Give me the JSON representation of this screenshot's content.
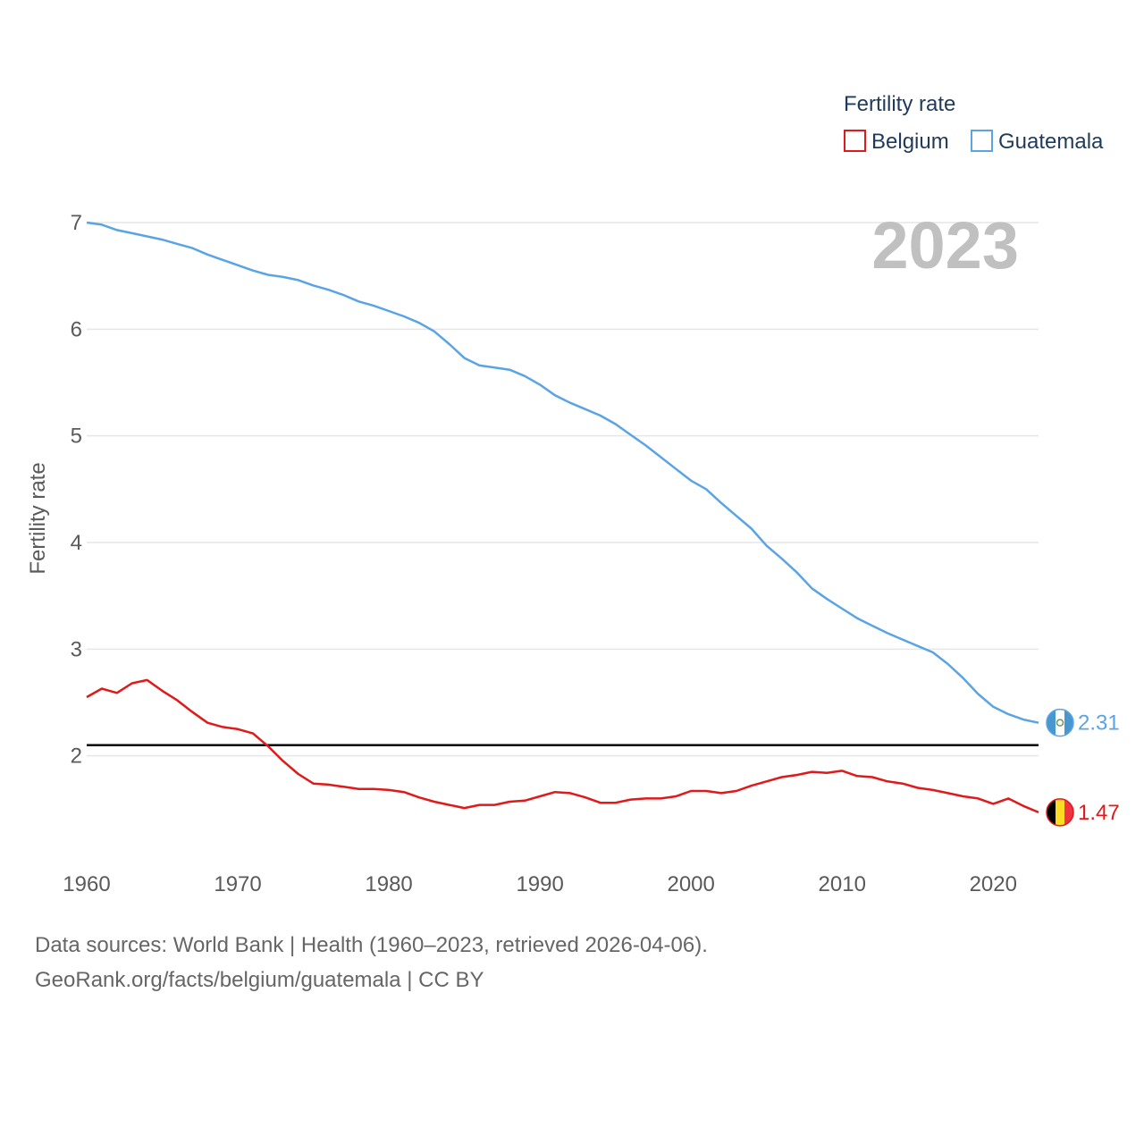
{
  "chart_data": {
    "type": "line",
    "legend_title": "Fertility rate",
    "ylabel": "Fertility rate",
    "xlabel": "",
    "year_label": "2023",
    "ylim": [
      1.0,
      7.0
    ],
    "xlim": [
      1960,
      2023
    ],
    "y_ticks": [
      2,
      3,
      4,
      5,
      6,
      7
    ],
    "x_ticks": [
      1960,
      1970,
      1980,
      1990,
      2000,
      2010,
      2020
    ],
    "reference_line": 2.1,
    "x": [
      1960,
      1961,
      1962,
      1963,
      1964,
      1965,
      1966,
      1967,
      1968,
      1969,
      1970,
      1971,
      1972,
      1973,
      1974,
      1975,
      1976,
      1977,
      1978,
      1979,
      1980,
      1981,
      1982,
      1983,
      1984,
      1985,
      1986,
      1987,
      1988,
      1989,
      1990,
      1991,
      1992,
      1993,
      1994,
      1995,
      1996,
      1997,
      1998,
      1999,
      2000,
      2001,
      2002,
      2003,
      2004,
      2005,
      2006,
      2007,
      2008,
      2009,
      2010,
      2011,
      2012,
      2013,
      2014,
      2015,
      2016,
      2017,
      2018,
      2019,
      2020,
      2021,
      2022,
      2023
    ],
    "series": [
      {
        "name": "Belgium",
        "color": "#e01a1a",
        "end_label": "1.47",
        "flag": "belgium-flag",
        "values": [
          2.55,
          2.63,
          2.59,
          2.68,
          2.71,
          2.61,
          2.52,
          2.41,
          2.31,
          2.27,
          2.25,
          2.21,
          2.09,
          1.95,
          1.83,
          1.74,
          1.73,
          1.71,
          1.69,
          1.69,
          1.68,
          1.66,
          1.61,
          1.57,
          1.54,
          1.51,
          1.54,
          1.54,
          1.57,
          1.58,
          1.62,
          1.66,
          1.65,
          1.61,
          1.56,
          1.56,
          1.59,
          1.6,
          1.6,
          1.62,
          1.67,
          1.67,
          1.65,
          1.67,
          1.72,
          1.76,
          1.8,
          1.82,
          1.85,
          1.84,
          1.86,
          1.81,
          1.8,
          1.76,
          1.74,
          1.7,
          1.68,
          1.65,
          1.62,
          1.6,
          1.55,
          1.6,
          1.53,
          1.47
        ]
      },
      {
        "name": "Guatemala",
        "color": "#5aa4e6",
        "end_label": "2.31",
        "flag": "guatemala-flag",
        "values": [
          7.0,
          6.98,
          6.93,
          6.9,
          6.87,
          6.84,
          6.8,
          6.76,
          6.7,
          6.65,
          6.6,
          6.55,
          6.51,
          6.49,
          6.46,
          6.41,
          6.37,
          6.32,
          6.26,
          6.22,
          6.17,
          6.12,
          6.06,
          5.98,
          5.86,
          5.73,
          5.66,
          5.64,
          5.62,
          5.56,
          5.48,
          5.38,
          5.31,
          5.25,
          5.19,
          5.11,
          5.01,
          4.91,
          4.8,
          4.69,
          4.58,
          4.5,
          4.37,
          4.25,
          4.13,
          3.97,
          3.85,
          3.72,
          3.57,
          3.47,
          3.38,
          3.29,
          3.22,
          3.15,
          3.09,
          3.03,
          2.97,
          2.86,
          2.73,
          2.58,
          2.46,
          2.39,
          2.34,
          2.31
        ]
      }
    ]
  },
  "footer": {
    "line1": "Data sources: World Bank | Health (1960–2023, retrieved 2026-04-06).",
    "line2": "GeoRank.org/facts/belgium/guatemala | CC BY"
  }
}
